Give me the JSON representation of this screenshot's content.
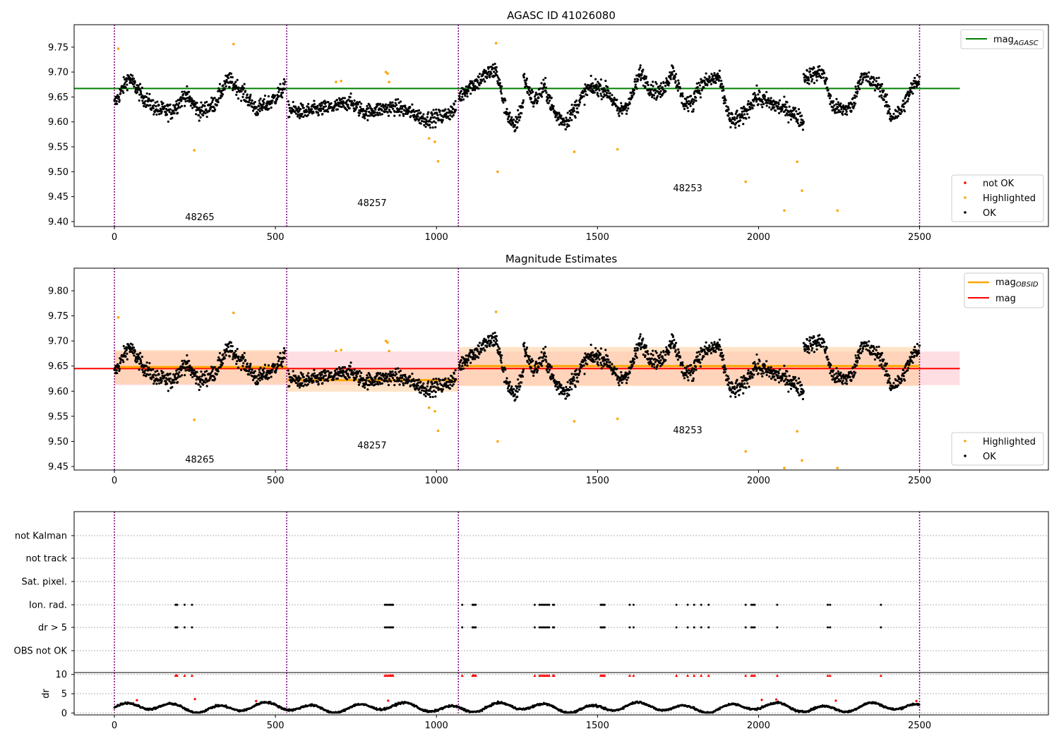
{
  "colors": {
    "obs_boundary": "#800080",
    "ok": "#000000",
    "highlighted": "#ffa500",
    "not_ok": "#ff0000",
    "mag_agasc": "#008000",
    "mag_obsid": "#ffa500",
    "mag": "#ff0000",
    "mag_band": "#ffb6c1",
    "obsid_band": "#ffcc99",
    "grid": "#b0b0b0"
  },
  "chart_data": [
    {
      "type": "scatter",
      "title": "AGASC ID 41026080",
      "xlim": [
        -125,
        2900
      ],
      "ylim": [
        9.39,
        9.795
      ],
      "xticks": [
        "0",
        "500",
        "1000",
        "1500",
        "2000",
        "2500"
      ],
      "yticks": [
        "9.40",
        "9.45",
        "9.50",
        "9.55",
        "9.60",
        "9.65",
        "9.70",
        "9.75"
      ],
      "obs_boundaries": [
        0,
        535,
        1068,
        2500
      ],
      "obsid_labels": [
        {
          "text": "48265",
          "x": 265,
          "y": 9.403
        },
        {
          "text": "48257",
          "x": 800,
          "y": 9.431
        },
        {
          "text": "48253",
          "x": 1780,
          "y": 9.461
        }
      ],
      "mag_agasc": 9.667,
      "legend_lines": {
        "mag_agasc": "mag",
        "mag_agasc_sub": "AGASC"
      },
      "legend_points": [
        "not OK",
        "Highlighted",
        "OK"
      ],
      "highlighted": [
        [
          12,
          9.747
        ],
        [
          370,
          9.756
        ],
        [
          248,
          9.543
        ],
        [
          688,
          9.68
        ],
        [
          704,
          9.682
        ],
        [
          843,
          9.7
        ],
        [
          848,
          9.697
        ],
        [
          853,
          9.68
        ],
        [
          977,
          9.567
        ],
        [
          995,
          9.56
        ],
        [
          1005,
          9.521
        ],
        [
          1185,
          9.758
        ],
        [
          1190,
          9.5
        ],
        [
          1428,
          9.54
        ],
        [
          1562,
          9.545
        ],
        [
          1960,
          9.48
        ],
        [
          2080,
          9.422
        ],
        [
          2120,
          9.52
        ],
        [
          2135,
          9.462
        ],
        [
          2245,
          9.422
        ]
      ],
      "ok_segments": [
        {
          "from": 0,
          "to": 530,
          "base": [
            9.635,
            9.69,
            9.65,
            9.625,
            9.62,
            9.655,
            9.62,
            9.635,
            9.685,
            9.66,
            9.625,
            9.64,
            9.67
          ],
          "noise": 0.03
        },
        {
          "from": 540,
          "to": 1060,
          "base": [
            9.625,
            9.62,
            9.625,
            9.63,
            9.64,
            9.62,
            9.625,
            9.63,
            9.62,
            9.605,
            9.61,
            9.625
          ],
          "noise": 0.028
        },
        {
          "from": 1070,
          "to": 1270,
          "base": [
            9.65,
            9.67,
            9.68,
            9.695,
            9.705,
            9.63,
            9.585,
            9.64
          ],
          "noise": 0.032
        },
        {
          "from": 1270,
          "to": 1500,
          "base": [
            9.69,
            9.64,
            9.67,
            9.615,
            9.6,
            9.63,
            9.665,
            9.67
          ],
          "noise": 0.032
        },
        {
          "from": 1500,
          "to": 1800,
          "base": [
            9.67,
            9.66,
            9.62,
            9.64,
            9.7,
            9.665,
            9.66,
            9.705,
            9.64,
            9.635
          ],
          "noise": 0.03
        },
        {
          "from": 1800,
          "to": 2140,
          "base": [
            9.66,
            9.68,
            9.69,
            9.6,
            9.61,
            9.65,
            9.64,
            9.63,
            9.62,
            9.6
          ],
          "noise": 0.032
        },
        {
          "from": 2140,
          "to": 2500,
          "base": [
            9.69,
            9.695,
            9.7,
            9.63,
            9.625,
            9.63,
            9.695,
            9.68,
            9.67,
            9.61,
            9.62,
            9.66,
            9.69
          ],
          "noise": 0.03
        }
      ]
    },
    {
      "type": "scatter",
      "title": "Magnitude Estimates",
      "xlim": [
        -125,
        2900
      ],
      "ylim": [
        9.443,
        9.845
      ],
      "xticks": [
        "0",
        "500",
        "1000",
        "1500",
        "2000",
        "2500"
      ],
      "yticks": [
        "9.45",
        "9.50",
        "9.55",
        "9.60",
        "9.65",
        "9.70",
        "9.75",
        "9.80"
      ],
      "obs_boundaries": [
        0,
        535,
        1068,
        2500
      ],
      "obsid_labels": [
        {
          "text": "48265",
          "x": 265,
          "y": 9.458
        },
        {
          "text": "48257",
          "x": 800,
          "y": 9.486
        },
        {
          "text": "48253",
          "x": 1780,
          "y": 9.516
        }
      ],
      "mag": 9.645,
      "mag_band": [
        9.612,
        9.679
      ],
      "mag_obsid": [
        {
          "from": 0,
          "to": 535,
          "value": 9.648,
          "band": [
            9.614,
            9.682
          ]
        },
        {
          "from": 535,
          "to": 1068,
          "value": 9.622,
          "band": [
            9.599,
            9.646
          ]
        },
        {
          "from": 1068,
          "to": 2500,
          "value": 9.65,
          "band": [
            9.61,
            9.688
          ]
        }
      ],
      "legend_lines": {
        "mag_obsid": "mag",
        "mag_obsid_sub": "OBSID",
        "mag": "mag"
      },
      "legend_points": [
        "Highlighted",
        "OK"
      ]
    },
    {
      "type": "scatter",
      "title": "",
      "xlim": [
        -125,
        2900
      ],
      "xticks": [
        "0",
        "500",
        "1000",
        "1500",
        "2000",
        "2500"
      ],
      "flag_rows": [
        "not Kalman",
        "not track",
        "Sat. pixel.",
        "Ion. rad.",
        "dr > 5",
        "OBS not OK"
      ],
      "flag_x": [
        190,
        192,
        195,
        218,
        241,
        840,
        845,
        850,
        855,
        858,
        862,
        865,
        1080,
        1112,
        1115,
        1118,
        1122,
        1305,
        1320,
        1325,
        1330,
        1335,
        1340,
        1345,
        1350,
        1362,
        1365,
        1510,
        1514,
        1518,
        1522,
        1600,
        1612,
        1745,
        1780,
        1800,
        1822,
        1845,
        1960,
        1978,
        1983,
        1988,
        2058,
        2215,
        2222,
        2380
      ],
      "dr_yticks": [
        "0",
        "5",
        "10"
      ],
      "dr_ylabel": "dr",
      "dr_ylim": [
        -0.5,
        10.5
      ]
    }
  ]
}
